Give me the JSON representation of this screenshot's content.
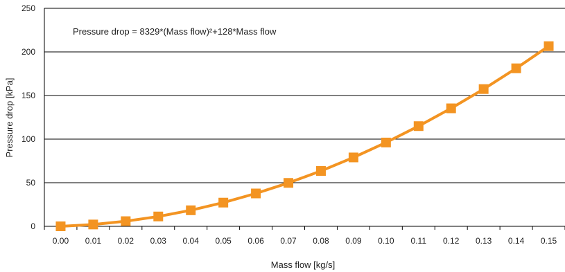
{
  "chart_data": {
    "type": "line",
    "title": "",
    "xlabel": "Mass flow [kg/s]",
    "ylabel": "Pressure drop [kPa]",
    "annotation": "Pressure drop = 8329*(Mass flow)²+128*Mass flow",
    "x": [
      "0.00",
      "0.01",
      "0.02",
      "0.03",
      "0.04",
      "0.05",
      "0.06",
      "0.07",
      "0.08",
      "0.09",
      "0.10",
      "0.11",
      "0.12",
      "0.13",
      "0.14",
      "0.15"
    ],
    "yticks": [
      "0",
      "50",
      "100",
      "150",
      "200",
      "250"
    ],
    "ylim": [
      0,
      250
    ],
    "series": [
      {
        "values": [
          0,
          2.1,
          5.9,
          11.3,
          18.4,
          27.2,
          37.7,
          49.8,
          63.5,
          79.0,
          96.1,
          114.9,
          135.3,
          157.4,
          181.2,
          206.6
        ]
      }
    ],
    "grid": true,
    "legend": "none",
    "colors": {
      "series": "#f39422",
      "grid": "#000000",
      "axis": "#000000"
    }
  }
}
